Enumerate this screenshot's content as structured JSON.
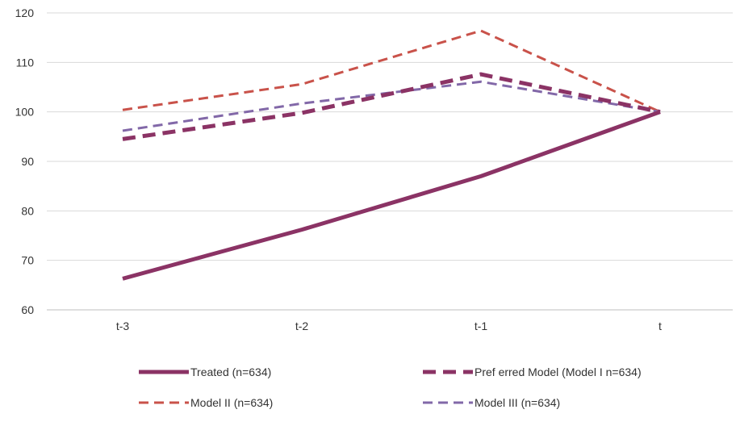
{
  "chart_data": {
    "type": "line",
    "title": "",
    "xlabel": "",
    "ylabel": "",
    "categories": [
      "t-3",
      "t-2",
      "t-1",
      "t"
    ],
    "y_ticks": [
      "60",
      "70",
      "80",
      "90",
      "100",
      "110",
      "120"
    ],
    "ylim": [
      60,
      120
    ],
    "grid": true,
    "legend_placement": "bottom",
    "series": [
      {
        "name": "Treated (n=634)",
        "values": [
          66.3,
          76.2,
          87.0,
          100.0
        ],
        "color": "#8b3365",
        "style": "solid"
      },
      {
        "name": "Pref erred Model (Model I n=634)",
        "values": [
          94.5,
          99.8,
          107.6,
          100.0
        ],
        "color": "#8b3365",
        "style": "long-dash"
      },
      {
        "name": "Model II (n=634)",
        "values": [
          100.4,
          105.6,
          116.4,
          100.0
        ],
        "color": "#c9524a",
        "style": "dash"
      },
      {
        "name": "Model III (n=634)",
        "values": [
          96.2,
          101.7,
          106.1,
          100.0
        ],
        "color": "#8268a8",
        "style": "dash"
      }
    ]
  }
}
